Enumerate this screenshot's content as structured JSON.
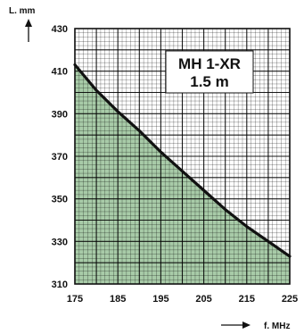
{
  "chart_data": {
    "type": "area",
    "title_lines": [
      "MH 1-XR",
      "1.5 m"
    ],
    "xlabel": "f. MHz",
    "ylabel": "L. mm",
    "x_ticks": [
      175,
      185,
      195,
      205,
      215,
      225
    ],
    "y_ticks": [
      310,
      330,
      350,
      370,
      390,
      410,
      430
    ],
    "x_tick_labels": [
      "175",
      "185",
      "195",
      "205",
      "215",
      "225"
    ],
    "y_tick_labels": [
      "310",
      "330",
      "350",
      "370",
      "390",
      "410",
      "430"
    ],
    "xlim": [
      175,
      225
    ],
    "ylim": [
      310,
      430
    ],
    "grid": true,
    "series": [
      {
        "x": [
          175,
          180,
          185,
          190,
          195,
          200,
          205,
          210,
          215,
          220,
          225
        ],
        "y": [
          413,
          401,
          391,
          382,
          372,
          363,
          354,
          345,
          337,
          330,
          323
        ]
      }
    ],
    "colors": {
      "fill": "#a8cba8",
      "line": "#111111",
      "grid": "#000000"
    }
  }
}
